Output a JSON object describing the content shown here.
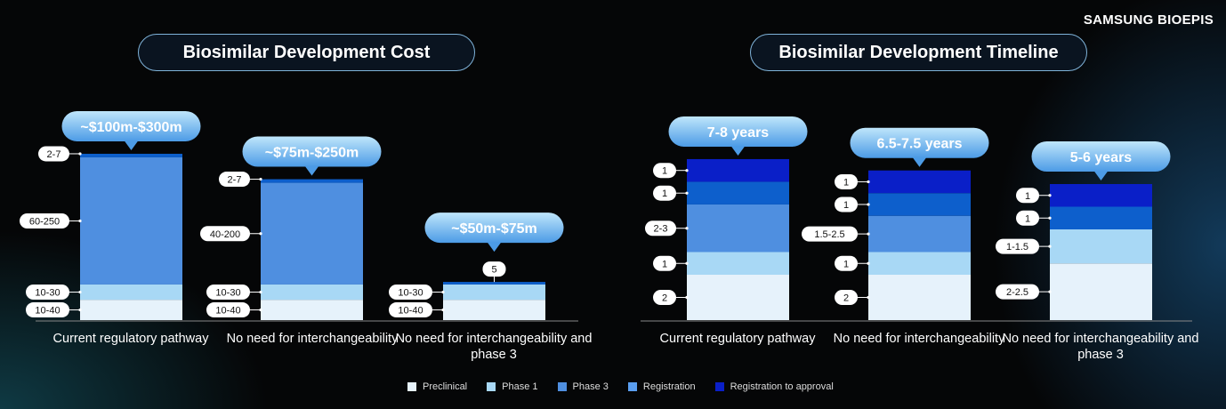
{
  "logo": "SAMSUNG BIOEPIS",
  "colors": {
    "Preclinical": "#e6f2fb",
    "Phase 1": "#a8d8f5",
    "Phase 3": "#4f8fe0",
    "Registration": "#0d5fcc",
    "Registration to approval": "#0a1fc8"
  },
  "legend": [
    "Preclinical",
    "Phase 1",
    "Phase 3",
    "Registration",
    "Registration to approval"
  ],
  "chart_data": [
    {
      "type": "bar",
      "stacked": true,
      "title": "Biosimilar Development Cost",
      "unit": "$m",
      "categories": [
        "Current regulatory pathway",
        "No need for interchangeability",
        "No need for interchangeability and phase 3"
      ],
      "totals": [
        "~$100m-$300m",
        "~$75m-$250m",
        "~$50m-$75m"
      ],
      "bars": [
        [
          {
            "stage": "Preclinical",
            "label": "10-40",
            "value": 40
          },
          {
            "stage": "Phase 1",
            "label": "10-30",
            "value": 30
          },
          {
            "stage": "Phase 3",
            "label": "60-250",
            "value": 250
          },
          {
            "stage": "Registration",
            "label": "2-7",
            "value": 7
          }
        ],
        [
          {
            "stage": "Preclinical",
            "label": "10-40",
            "value": 40
          },
          {
            "stage": "Phase 1",
            "label": "10-30",
            "value": 30
          },
          {
            "stage": "Phase 3",
            "label": "40-200",
            "value": 200
          },
          {
            "stage": "Registration",
            "label": "2-7",
            "value": 7
          }
        ],
        [
          {
            "stage": "Preclinical",
            "label": "10-40",
            "value": 40
          },
          {
            "stage": "Phase 1",
            "label": "10-30",
            "value": 30
          },
          {
            "stage": "Registration",
            "label": "5",
            "value": 5
          }
        ]
      ]
    },
    {
      "type": "bar",
      "stacked": true,
      "title": "Biosimilar Development Timeline",
      "unit": "years",
      "categories": [
        "Current regulatory pathway",
        "No need for interchangeability",
        "No need for interchangeability and phase 3"
      ],
      "totals": [
        "7-8 years",
        "6.5-7.5 years",
        "5-6 years"
      ],
      "bars": [
        [
          {
            "stage": "Preclinical",
            "label": "2",
            "value": 2
          },
          {
            "stage": "Phase 1",
            "label": "1",
            "value": 1
          },
          {
            "stage": "Phase 3",
            "label": "2-3",
            "value": 2.1
          },
          {
            "stage": "Registration",
            "label": "1",
            "value": 1
          },
          {
            "stage": "Registration to approval",
            "label": "1",
            "value": 1
          }
        ],
        [
          {
            "stage": "Preclinical",
            "label": "2",
            "value": 2
          },
          {
            "stage": "Phase 1",
            "label": "1",
            "value": 1
          },
          {
            "stage": "Phase 3",
            "label": "1.5-2.5",
            "value": 1.6
          },
          {
            "stage": "Registration",
            "label": "1",
            "value": 1
          },
          {
            "stage": "Registration to approval",
            "label": "1",
            "value": 1
          }
        ],
        [
          {
            "stage": "Preclinical",
            "label": "2-2.5",
            "value": 2.5
          },
          {
            "stage": "Phase 1",
            "label": "1-1.5",
            "value": 1.5
          },
          {
            "stage": "Registration",
            "label": "1",
            "value": 1
          },
          {
            "stage": "Registration to approval",
            "label": "1",
            "value": 1
          }
        ]
      ]
    }
  ]
}
